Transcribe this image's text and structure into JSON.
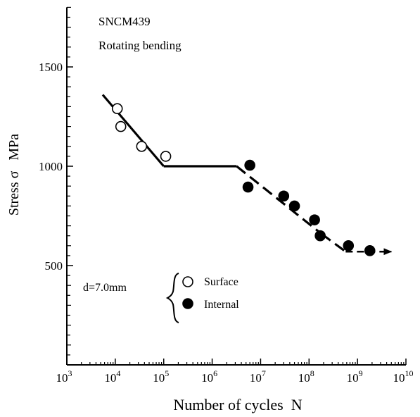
{
  "chart_data": {
    "type": "scatter",
    "title": "",
    "xlabel": "Number of cycles  N",
    "ylabel": "Stress σ   MPa",
    "x_scale": "log",
    "x_ticks": [
      {
        "value": 1000,
        "base": "10",
        "exp": "3"
      },
      {
        "value": 10000,
        "base": "10",
        "exp": "4"
      },
      {
        "value": 100000,
        "base": "10",
        "exp": "5"
      },
      {
        "value": 1000000,
        "base": "10",
        "exp": "6"
      },
      {
        "value": 10000000,
        "base": "10",
        "exp": "7"
      },
      {
        "value": 100000000,
        "base": "10",
        "exp": "8"
      },
      {
        "value": 1000000000,
        "base": "10",
        "exp": "9"
      },
      {
        "value": 10000000000,
        "base": "10",
        "exp": "10"
      }
    ],
    "y_ticks": [
      500,
      1000,
      1500
    ],
    "xlim": [
      1000,
      10000000000
    ],
    "ylim": [
      0,
      1800
    ],
    "grid": false,
    "annotations": {
      "material": "SNCM439",
      "test": "Rotating bending",
      "diameter": "d=7.0mm"
    },
    "legend": [
      {
        "label": "Surface",
        "marker": "open-circle"
      },
      {
        "label": "Internal",
        "marker": "filled-circle"
      }
    ],
    "series": [
      {
        "name": "Surface",
        "marker": "open-circle",
        "points": [
          {
            "x": 11000,
            "y": 1290
          },
          {
            "x": 13000,
            "y": 1200
          },
          {
            "x": 35000,
            "y": 1100
          },
          {
            "x": 110000,
            "y": 1050
          }
        ]
      },
      {
        "name": "Internal",
        "marker": "filled-circle",
        "points": [
          {
            "x": 6000000,
            "y": 1005
          },
          {
            "x": 5500000,
            "y": 895
          },
          {
            "x": 30000000,
            "y": 850
          },
          {
            "x": 50000000,
            "y": 800
          },
          {
            "x": 130000000,
            "y": 730
          },
          {
            "x": 170000000,
            "y": 650
          },
          {
            "x": 650000000,
            "y": 600
          },
          {
            "x": 1800000000,
            "y": 575
          }
        ]
      }
    ],
    "sn_curve": [
      {
        "x": 5500,
        "y": 1360,
        "style": "solid"
      },
      {
        "x": 100000,
        "y": 1000,
        "style": "solid"
      },
      {
        "x": 3200000,
        "y": 1000,
        "style": "solid"
      },
      {
        "x": 180000000,
        "y": 660,
        "style": "dashed"
      },
      {
        "x": 570000000,
        "y": 570,
        "style": "dashed"
      },
      {
        "x": 5000000000,
        "y": 570,
        "style": "arrow"
      }
    ]
  }
}
